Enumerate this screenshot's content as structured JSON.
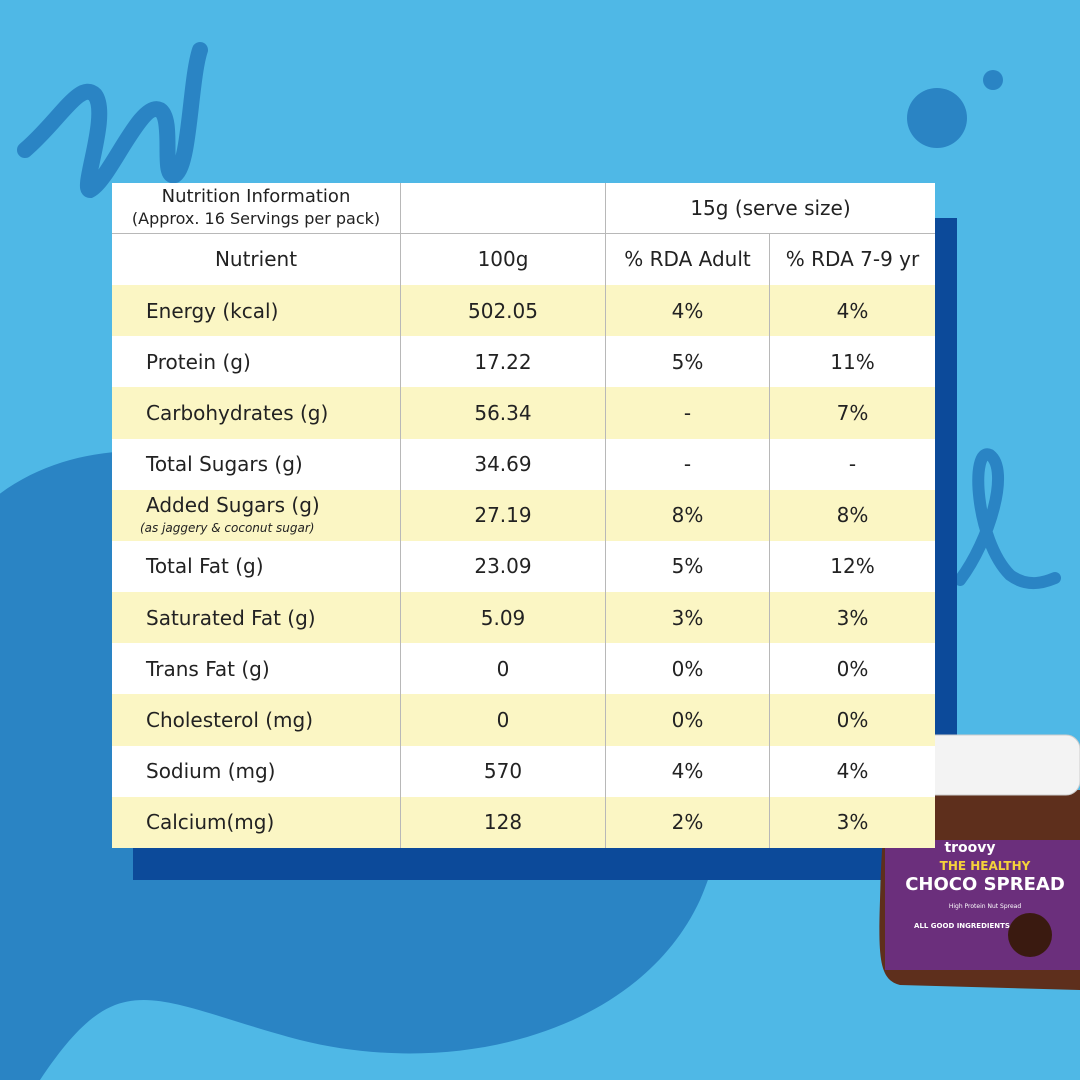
{
  "header": {
    "title": "Nutrition Information",
    "subtitle": "(Approx. 16 Servings per pack)",
    "serve": "15g (serve size)"
  },
  "table": {
    "columns": [
      "Nutrient",
      "100g",
      "% RDA Adult",
      "% RDA 7-9 yr"
    ],
    "rows": [
      {
        "cells": [
          "Energy (kcal)",
          "502.05",
          "4%",
          "4%"
        ]
      },
      {
        "cells": [
          "Protein (g)",
          "17.22",
          "5%",
          "11%"
        ]
      },
      {
        "cells": [
          "Carbohydrates (g)",
          "56.34",
          "-",
          "7%"
        ]
      },
      {
        "cells": [
          "Total Sugars (g)",
          "34.69",
          "-",
          "-"
        ]
      },
      {
        "cells": [
          "Added Sugars (g)",
          "27.19",
          "8%",
          "8%"
        ],
        "note": "(as jaggery & coconut sugar)"
      },
      {
        "cells": [
          "Total Fat (g)",
          "23.09",
          "5%",
          "12%"
        ]
      },
      {
        "cells": [
          "Saturated Fat (g)",
          "5.09",
          "3%",
          "3%"
        ]
      },
      {
        "cells": [
          "Trans Fat (g)",
          "0",
          "0%",
          "0%"
        ]
      },
      {
        "cells": [
          "Cholesterol (mg)",
          "0",
          "0%",
          "0%"
        ]
      },
      {
        "cells": [
          "Sodium (mg)",
          "570",
          "4%",
          "4%"
        ]
      },
      {
        "cells": [
          "Calcium(mg)",
          "128",
          "2%",
          "3%"
        ]
      }
    ]
  },
  "product": {
    "brand": "troovy",
    "line1": "THE HEALTHY",
    "line2": "CHOCO SPREAD",
    "tagline": "High Protein Nut Spread",
    "badge": "ALL GOOD INGREDIENTS"
  }
}
